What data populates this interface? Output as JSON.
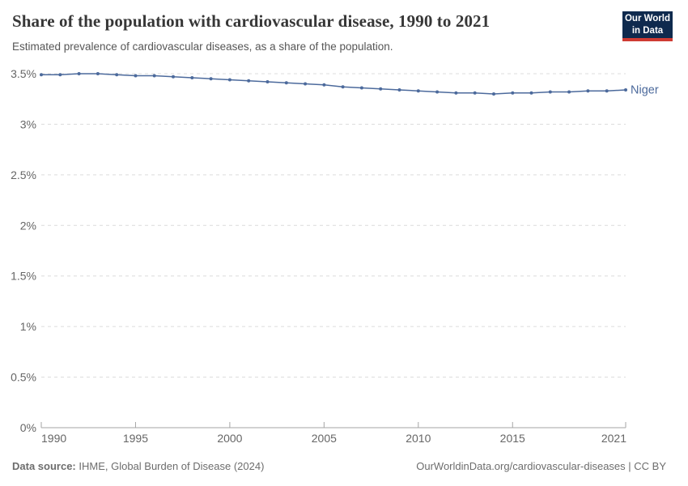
{
  "header": {
    "title": "Share of the population with cardiovascular disease, 1990 to 2021",
    "subtitle": "Estimated prevalence of cardiovascular diseases, as a share of the population.",
    "logo": {
      "line1": "Our World",
      "line2": "in Data",
      "bg_color": "#0f2a4e",
      "accent_color": "#cf3b33"
    }
  },
  "chart_data": {
    "type": "line",
    "title": "Share of the population with cardiovascular disease, 1990 to 2021",
    "subtitle": "Estimated prevalence of cardiovascular diseases, as a share of the population.",
    "xlabel": "",
    "ylabel": "",
    "xlim": [
      1990,
      2021
    ],
    "ylim": [
      0,
      3.5
    ],
    "grid": "horizontal-dashed",
    "legend_position": "end-of-line-label",
    "xticks": [
      1990,
      1995,
      2000,
      2005,
      2010,
      2015,
      2021
    ],
    "xtick_labels": [
      "1990",
      "1995",
      "2000",
      "2005",
      "2010",
      "2015",
      "2021"
    ],
    "yticks": [
      0,
      0.5,
      1,
      1.5,
      2,
      2.5,
      3,
      3.5
    ],
    "ytick_labels": [
      "0%",
      "0.5%",
      "1%",
      "1.5%",
      "2%",
      "2.5%",
      "3%",
      "3.5%"
    ],
    "x": [
      1990,
      1991,
      1992,
      1993,
      1994,
      1995,
      1996,
      1997,
      1998,
      1999,
      2000,
      2001,
      2002,
      2003,
      2004,
      2005,
      2006,
      2007,
      2008,
      2009,
      2010,
      2011,
      2012,
      2013,
      2014,
      2015,
      2016,
      2017,
      2018,
      2019,
      2020,
      2021
    ],
    "series": [
      {
        "name": "Niger",
        "color": "#4c6a9c",
        "values": [
          3.49,
          3.49,
          3.5,
          3.5,
          3.49,
          3.48,
          3.48,
          3.47,
          3.46,
          3.45,
          3.44,
          3.43,
          3.42,
          3.41,
          3.4,
          3.39,
          3.37,
          3.36,
          3.35,
          3.34,
          3.33,
          3.32,
          3.31,
          3.31,
          3.3,
          3.31,
          3.31,
          3.32,
          3.32,
          3.33,
          3.33,
          3.34
        ]
      }
    ]
  },
  "colors": {
    "line": "#4c6a9c",
    "gridline": "#dcdcdc",
    "axis_line": "#a5a5a5",
    "tick_label": "#666666",
    "title": "#373737",
    "subtitle": "#565656",
    "footer": "#6d6d6d"
  },
  "footer": {
    "source_label": "Data source:",
    "source_text": " IHME, Global Burden of Disease (2024)",
    "license_text": "OurWorldinData.org/cardiovascular-diseases | CC BY"
  }
}
